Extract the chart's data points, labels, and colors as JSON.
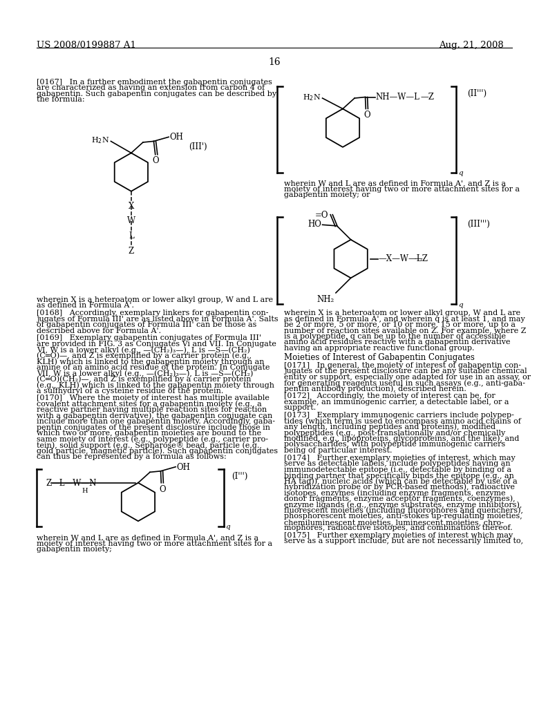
{
  "patent_number": "US 2008/0199887 A1",
  "patent_date": "Aug. 21, 2008",
  "page_number": "16",
  "bg": "#ffffff"
}
